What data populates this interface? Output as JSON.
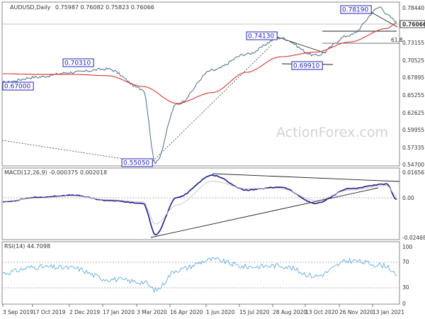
{
  "header": {
    "symbol": "AUDUSD,Daily",
    "ohlc": "0.75987 0.76082 0.75823 0.76066"
  },
  "watermark": "ActionForex.com",
  "colors": {
    "price": "#4a6c80",
    "ma": "#e03030",
    "macd": "#1a1a8c",
    "signal": "#c8c8c8",
    "rsi": "#4aa3df",
    "trend": "#222222",
    "label": "#1f1fbf"
  },
  "chart_data": [
    {
      "panel": "price",
      "type": "line",
      "title": "AUDUSD,Daily",
      "ylim": [
        0.5474,
        0.788
      ],
      "y_ticks": [
        "0.78440",
        "0.76066",
        "0.73155",
        "0.70525",
        "0.67895",
        "0.65255",
        "0.62625",
        "0.59955",
        "0.57335",
        "0.54700"
      ],
      "current_price": "0.76066",
      "x_ticks": [
        "3 Sep 2019",
        "17 Oct 2019",
        "2 Dec 2019",
        "17 Jan 2020",
        "3 Mar 2020",
        "16 Apr 2020",
        "1 Jun 2020",
        "15 Jul 2020",
        "28 Aug 2020",
        "13 Oct 2020",
        "26 Nov 2020",
        "13 Jan 2021"
      ],
      "series": [
        {
          "x": [
            "3 Sep 2019",
            "17 Oct 2019",
            "2 Dec 2019",
            "17 Jan 2020",
            "3 Mar 2020",
            "19 Mar 2020",
            "16 Apr 2020",
            "1 Jun 2020",
            "15 Jul 2020",
            "28 Aug 2020",
            "13 Oct 2020",
            "26 Nov 2020",
            "6 Jan 2021",
            "13 Jan 2021",
            "26 Jan 2021"
          ],
          "values": [
            0.67,
            0.678,
            0.685,
            0.69,
            0.66,
            0.551,
            0.638,
            0.688,
            0.712,
            0.736,
            0.71,
            0.74,
            0.7819,
            0.77,
            0.7607
          ]
        },
        {
          "x": [
            "3 Sep 2019",
            "17 Oct 2019",
            "2 Dec 2019",
            "17 Jan 2020",
            "3 Mar 2020",
            "16 Apr 2020",
            "1 Jun 2020",
            "15 Jul 2020",
            "28 Aug 2020",
            "13 Oct 2020",
            "26 Nov 2020",
            "13 Jan 2021",
            "26 Jan 2021"
          ],
          "values": [
            0.683,
            0.682,
            0.682,
            0.68,
            0.664,
            0.639,
            0.655,
            0.685,
            0.708,
            0.715,
            0.73,
            0.75,
            0.758
          ]
        }
      ],
      "annotations": [
        {
          "text": "0.67000",
          "x": "3 Sep 2019",
          "y": 0.67
        },
        {
          "text": "0.70310",
          "x": "2 Dec 2019",
          "y": 0.7031
        },
        {
          "text": "0.55050",
          "x": "19 Mar 2020",
          "y": 0.5505
        },
        {
          "text": "0.74130",
          "x": "1 Sep 2020",
          "y": 0.7413
        },
        {
          "text": "0.69910",
          "x": "2 Nov 2020",
          "y": 0.6991
        },
        {
          "text": "0.78190",
          "x": "6 Jan 2021",
          "y": 0.7819
        },
        {
          "text": "61.8",
          "x": "26 Jan 2021",
          "y": 0.732
        }
      ]
    },
    {
      "panel": "macd",
      "type": "line",
      "title": "MACD(12,26,9) -0.000375 0.002018",
      "ylim": [
        -0.027,
        0.018
      ],
      "y_ticks": [
        "0.016567",
        "0.00",
        "-0.024684"
      ],
      "series": [
        {
          "x": [
            "3 Sep 2019",
            "17 Oct 2019",
            "2 Dec 2019",
            "17 Jan 2020",
            "3 Mar 2020",
            "19 Mar 2020",
            "16 Apr 2020",
            "1 Jun 2020",
            "15 Jul 2020",
            "28 Aug 2020",
            "13 Oct 2020",
            "26 Nov 2020",
            "13 Jan 2021",
            "26 Jan 2021"
          ],
          "values": [
            -0.002,
            0.001,
            0.0025,
            -0.001,
            -0.003,
            -0.024,
            0.001,
            0.016,
            0.006,
            0.008,
            -0.003,
            0.007,
            0.01,
            -0.0004
          ]
        },
        {
          "x": [
            "3 Sep 2019",
            "17 Oct 2019",
            "2 Dec 2019",
            "17 Jan 2020",
            "3 Mar 2020",
            "19 Mar 2020",
            "16 Apr 2020",
            "1 Jun 2020",
            "15 Jul 2020",
            "28 Aug 2020",
            "13 Oct 2020",
            "26 Nov 2020",
            "13 Jan 2021",
            "26 Jan 2021"
          ],
          "values": [
            -0.0015,
            0.0005,
            0.002,
            -0.0005,
            -0.002,
            -0.017,
            -0.004,
            0.012,
            0.007,
            0.007,
            -0.001,
            0.006,
            0.009,
            0.002
          ]
        }
      ]
    },
    {
      "panel": "rsi",
      "type": "line",
      "title": "RSI(14) 44.7098",
      "ylim": [
        0,
        100
      ],
      "y_ticks": [
        "100",
        "70",
        "30",
        "0"
      ],
      "series": [
        {
          "x": [
            "3 Sep 2019",
            "17 Oct 2019",
            "2 Dec 2019",
            "17 Jan 2020",
            "3 Mar 2020",
            "19 Mar 2020",
            "16 Apr 2020",
            "1 Jun 2020",
            "15 Jul 2020",
            "28 Aug 2020",
            "13 Oct 2020",
            "26 Nov 2020",
            "13 Jan 2021",
            "26 Jan 2021"
          ],
          "values": [
            50,
            60,
            58,
            40,
            35,
            22,
            55,
            72,
            60,
            62,
            45,
            70,
            62,
            44.7
          ]
        }
      ]
    }
  ]
}
